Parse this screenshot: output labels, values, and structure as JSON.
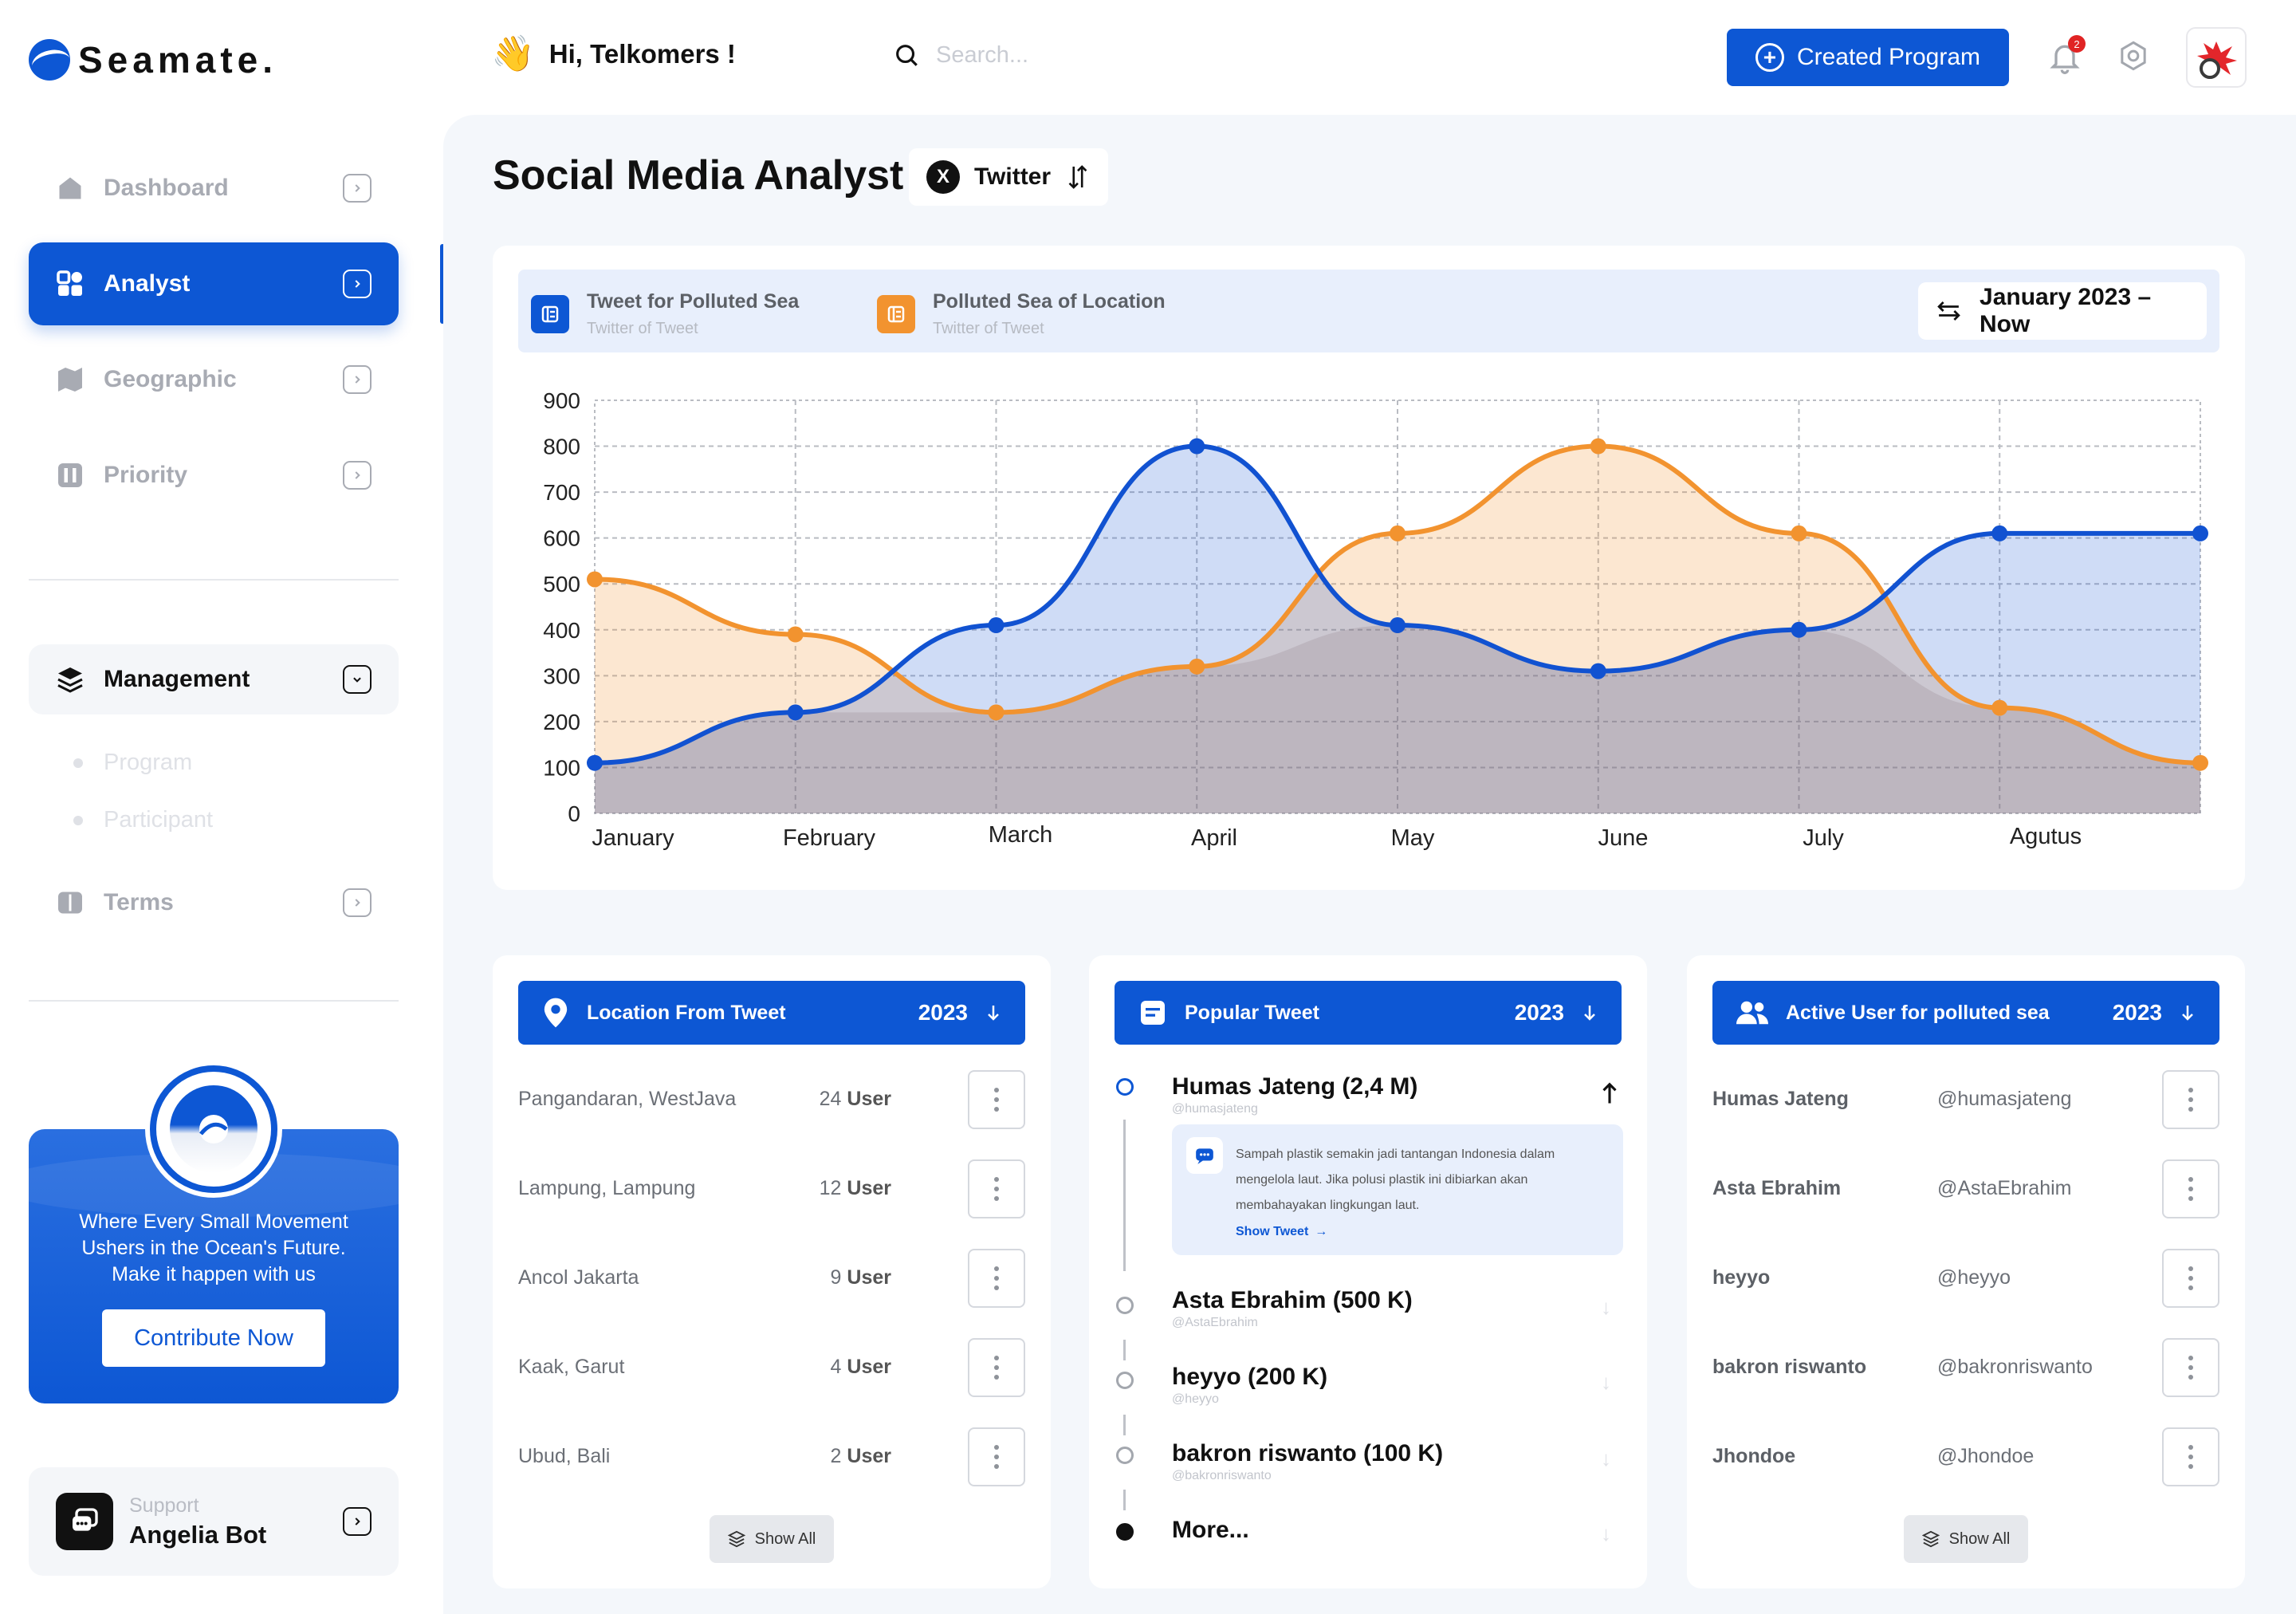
{
  "brand": {
    "name": "Seamate."
  },
  "header": {
    "greeting": "Hi, Telkomers !",
    "greeting_emoji": "👋",
    "search_placeholder": "Search...",
    "create_button": "Created Program",
    "notification_count": "2"
  },
  "sidebar": {
    "items": [
      {
        "label": "Dashboard",
        "icon": "home-icon",
        "active": false
      },
      {
        "label": "Analyst",
        "icon": "analytics-icon",
        "active": true
      },
      {
        "label": "Geographic",
        "icon": "map-icon",
        "active": false
      },
      {
        "label": "Priority",
        "icon": "priority-icon",
        "active": false
      }
    ],
    "management": {
      "label": "Management",
      "sub_items": [
        "Program",
        "Participant"
      ]
    },
    "terms": "Terms",
    "promo": {
      "text_lines": [
        "Where Every Small Movement",
        "Ushers in the Ocean's Future.",
        "Make it happen with us"
      ],
      "button": "Contribute Now"
    },
    "support": {
      "caption": "Support",
      "name": "Angelia Bot"
    }
  },
  "page": {
    "title": "Social Media Analyst",
    "platform": "Twitter"
  },
  "chart_legend": {
    "series1_title": "Tweet for Polluted Sea",
    "series1_sub": "Twitter of Tweet",
    "series2_title": "Polluted Sea of Location",
    "series2_sub": "Twitter of Tweet",
    "date_range": "January 2023 – Now"
  },
  "colors": {
    "accent": "#0d57d4",
    "series_blue": "#1152d1",
    "series_orange": "#f2932f"
  },
  "chart_data": {
    "type": "area",
    "categories": [
      "January",
      "February",
      "March",
      "April",
      "May",
      "June",
      "July",
      "Agutus"
    ],
    "y_ticks": [
      0,
      100,
      200,
      300,
      400,
      500,
      600,
      700,
      800,
      900
    ],
    "ylim": [
      0,
      900
    ],
    "grid": true,
    "series": [
      {
        "name": "Tweet for Polluted Sea",
        "color": "#1152d1",
        "x": [
          0,
          1,
          2,
          3,
          4,
          5,
          6,
          7,
          8
        ],
        "values": [
          110,
          220,
          410,
          800,
          410,
          310,
          400,
          610,
          610
        ]
      },
      {
        "name": "Polluted Sea of Location",
        "color": "#f2932f",
        "x": [
          0,
          1,
          2,
          3,
          4,
          5,
          6,
          7,
          8
        ],
        "values": [
          510,
          390,
          220,
          320,
          610,
          800,
          610,
          230,
          110
        ]
      }
    ]
  },
  "location_card": {
    "title": "Location From Tweet",
    "year": "2023",
    "rows": [
      {
        "place": "Pangandaran, WestJava",
        "count": "24",
        "unit": "User"
      },
      {
        "place": "Lampung, Lampung",
        "count": "12",
        "unit": "User"
      },
      {
        "place": "Ancol Jakarta",
        "count": "9",
        "unit": "User"
      },
      {
        "place": "Kaak, Garut",
        "count": "4",
        "unit": "User"
      },
      {
        "place": "Ubud, Bali",
        "count": "2",
        "unit": "User"
      }
    ],
    "show_all": "Show All"
  },
  "popular_card": {
    "title": "Popular Tweet",
    "year": "2023",
    "items": [
      {
        "name": "Humas Jateng (2,4 M)",
        "handle": "@humasjateng"
      },
      {
        "name": "Asta Ebrahim (500 K)",
        "handle": "@AstaEbrahim"
      },
      {
        "name": "heyyo (200 K)",
        "handle": "@heyyo"
      },
      {
        "name": "bakron riswanto (100 K)",
        "handle": "@bakronriswanto"
      }
    ],
    "tweet_text": "Sampah plastik semakin jadi tantangan Indonesia dalam mengelola laut. Jika polusi plastik ini dibiarkan akan membahayakan lingkungan laut.",
    "show_tweet": "Show Tweet",
    "more": "More..."
  },
  "active_card": {
    "title": "Active User for polluted sea",
    "year": "2023",
    "rows": [
      {
        "name": "Humas Jateng",
        "handle": "@humasjateng"
      },
      {
        "name": "Asta Ebrahim",
        "handle": "@AstaEbrahim"
      },
      {
        "name": "heyyo",
        "handle": "@heyyo"
      },
      {
        "name": "bakron riswanto",
        "handle": "@bakronriswanto"
      },
      {
        "name": "Jhondoe",
        "handle": "@Jhondoe"
      }
    ],
    "show_all": "Show All"
  }
}
